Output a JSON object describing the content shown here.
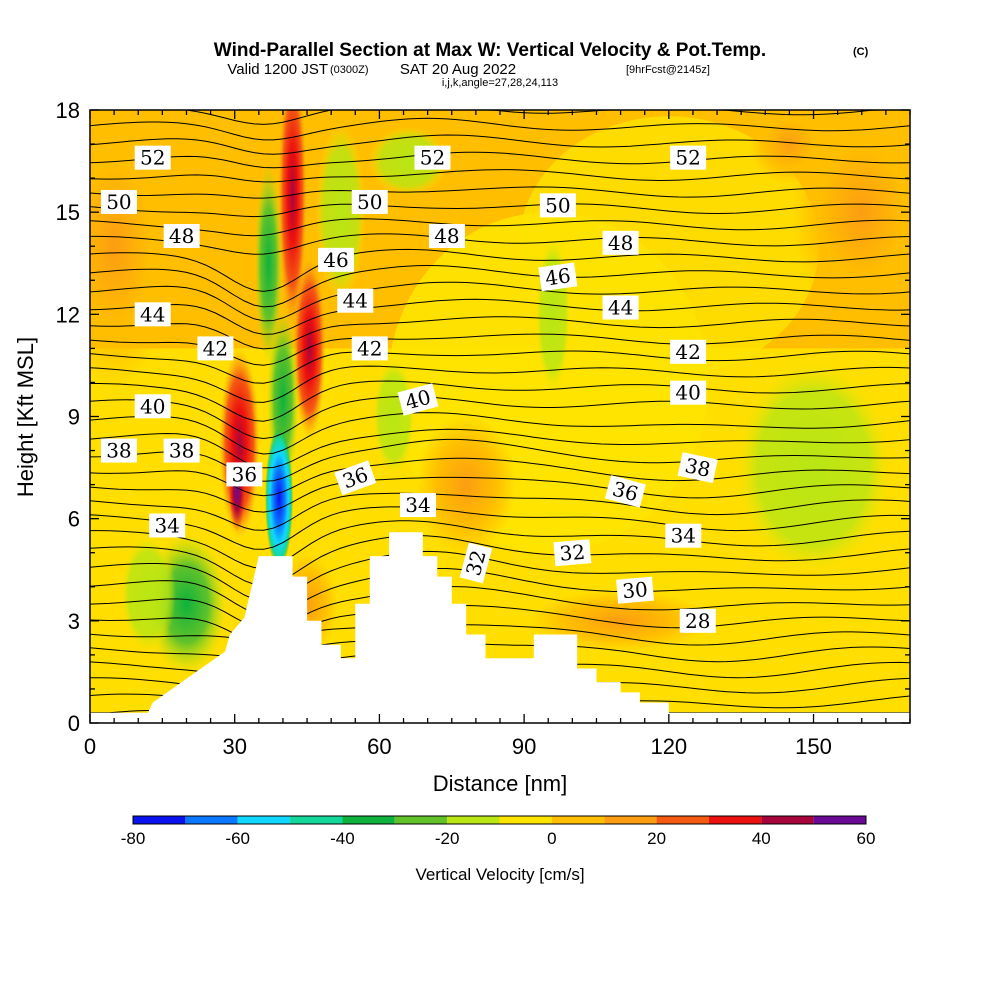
{
  "title": {
    "main": "Wind-Parallel Section at Max W: Vertical Velocity & Pot.Temp.",
    "mark": "(C)",
    "valid_prefix": "Valid 1200 JST",
    "valid_z": "(0300Z)",
    "valid_date": "SAT 20 Aug 2022",
    "forecast": "[9hrFcst@2145z]",
    "indices": "i,j,k,angle=27,28,24,113"
  },
  "chart_data": {
    "type": "heatmap",
    "xlabel": "Distance [nm]",
    "ylabel": "Height [Kft MSL]",
    "xlim": [
      0,
      170
    ],
    "ylim": [
      0,
      18
    ],
    "x_ticks": [
      0,
      30,
      60,
      90,
      120,
      150
    ],
    "y_ticks": [
      0,
      3,
      6,
      9,
      12,
      15,
      18
    ],
    "colorbar": {
      "label": "Vertical Velocity [cm/s]",
      "min": -80,
      "max": 60,
      "step": 10,
      "tick_values": [
        -80,
        -60,
        -40,
        -20,
        0,
        20,
        40,
        60
      ],
      "colors": [
        "#0a12f0",
        "#0a78ff",
        "#10d8ff",
        "#14d89a",
        "#0fb23c",
        "#61c22a",
        "#b9e614",
        "#ffe400",
        "#ffbe00",
        "#fc9d12",
        "#f55a12",
        "#ec1010",
        "#a8053c",
        "#6a0a96"
      ]
    },
    "vertical_velocity_features": [
      {
        "x": 31,
        "y": 8.5,
        "value": 45
      },
      {
        "x": 31,
        "y": 6.8,
        "value": 58
      },
      {
        "x": 39,
        "y": 7.0,
        "value": -85
      },
      {
        "x": 41,
        "y": 9.0,
        "value": -45
      },
      {
        "x": 38,
        "y": 13.5,
        "value": -30
      },
      {
        "x": 44,
        "y": 14.0,
        "value": 35
      },
      {
        "x": 46,
        "y": 11.0,
        "value": 30
      },
      {
        "x": 52,
        "y": 14.5,
        "value": -15
      },
      {
        "x": 67,
        "y": 16.0,
        "value": -10
      },
      {
        "x": 95,
        "y": 12.0,
        "value": -15
      },
      {
        "x": 150,
        "y": 7.5,
        "value": -15
      },
      {
        "x": 22,
        "y": 3.0,
        "value": -30
      },
      {
        "x": 13,
        "y": 3.5,
        "value": -15
      },
      {
        "x": 75,
        "y": 6.0,
        "value": 12
      },
      {
        "x": 145,
        "y": 16.5,
        "value": 12
      }
    ],
    "terrain": [
      {
        "x": 0,
        "h": 0.3
      },
      {
        "x": 12,
        "h": 0.3
      },
      {
        "x": 13,
        "h": 0.6
      },
      {
        "x": 16,
        "h": 0.9
      },
      {
        "x": 19,
        "h": 1.2
      },
      {
        "x": 22,
        "h": 1.5
      },
      {
        "x": 25,
        "h": 1.8
      },
      {
        "x": 28,
        "h": 2.1
      },
      {
        "x": 29,
        "h": 2.6
      },
      {
        "x": 32,
        "h": 3.1
      },
      {
        "x": 35,
        "h": 4.9
      },
      {
        "x": 42,
        "h": 4.9
      },
      {
        "x": 42,
        "h": 4.3
      },
      {
        "x": 45,
        "h": 4.3
      },
      {
        "x": 45,
        "h": 3.0
      },
      {
        "x": 48,
        "h": 3.0
      },
      {
        "x": 48,
        "h": 2.3
      },
      {
        "x": 52,
        "h": 2.3
      },
      {
        "x": 52,
        "h": 1.9
      },
      {
        "x": 55,
        "h": 1.9
      },
      {
        "x": 55,
        "h": 3.5
      },
      {
        "x": 58,
        "h": 3.5
      },
      {
        "x": 58,
        "h": 4.9
      },
      {
        "x": 62,
        "h": 4.9
      },
      {
        "x": 62,
        "h": 5.6
      },
      {
        "x": 69,
        "h": 5.6
      },
      {
        "x": 69,
        "h": 4.9
      },
      {
        "x": 72,
        "h": 4.9
      },
      {
        "x": 72,
        "h": 4.3
      },
      {
        "x": 75,
        "h": 4.3
      },
      {
        "x": 75,
        "h": 3.5
      },
      {
        "x": 78,
        "h": 3.5
      },
      {
        "x": 78,
        "h": 2.6
      },
      {
        "x": 82,
        "h": 2.6
      },
      {
        "x": 82,
        "h": 1.9
      },
      {
        "x": 92,
        "h": 1.9
      },
      {
        "x": 92,
        "h": 2.6
      },
      {
        "x": 101,
        "h": 2.6
      },
      {
        "x": 101,
        "h": 1.6
      },
      {
        "x": 105,
        "h": 1.6
      },
      {
        "x": 105,
        "h": 1.2
      },
      {
        "x": 110,
        "h": 1.2
      },
      {
        "x": 110,
        "h": 0.9
      },
      {
        "x": 114,
        "h": 0.9
      },
      {
        "x": 114,
        "h": 0.6
      },
      {
        "x": 120,
        "h": 0.6
      },
      {
        "x": 120,
        "h": 0.3
      },
      {
        "x": 170,
        "h": 0.3
      }
    ],
    "contour_labels": [
      {
        "text": "52",
        "x": 13,
        "y": 16.6,
        "angle": 0
      },
      {
        "text": "52",
        "x": 71,
        "y": 16.6,
        "angle": 0
      },
      {
        "text": "52",
        "x": 124,
        "y": 16.6,
        "angle": 0
      },
      {
        "text": "50",
        "x": 6,
        "y": 15.3,
        "angle": 0
      },
      {
        "text": "50",
        "x": 58,
        "y": 15.3,
        "angle": 0
      },
      {
        "text": "50",
        "x": 97,
        "y": 15.2,
        "angle": 0
      },
      {
        "text": "48",
        "x": 19,
        "y": 14.3,
        "angle": 0
      },
      {
        "text": "48",
        "x": 74,
        "y": 14.3,
        "angle": 0
      },
      {
        "text": "48",
        "x": 110,
        "y": 14.1,
        "angle": 0
      },
      {
        "text": "46",
        "x": 51,
        "y": 13.6,
        "angle": 0
      },
      {
        "text": "46",
        "x": 97,
        "y": 13.1,
        "angle": -8
      },
      {
        "text": "44",
        "x": 13,
        "y": 12.0,
        "angle": 0
      },
      {
        "text": "44",
        "x": 55,
        "y": 12.4,
        "angle": 0
      },
      {
        "text": "44",
        "x": 110,
        "y": 12.2,
        "angle": 0
      },
      {
        "text": "42",
        "x": 26,
        "y": 11.0,
        "angle": 0
      },
      {
        "text": "42",
        "x": 58,
        "y": 11.0,
        "angle": 0
      },
      {
        "text": "42",
        "x": 124,
        "y": 10.9,
        "angle": 0
      },
      {
        "text": "40",
        "x": 13,
        "y": 9.3,
        "angle": 0
      },
      {
        "text": "40",
        "x": 68,
        "y": 9.5,
        "angle": -15
      },
      {
        "text": "40",
        "x": 124,
        "y": 9.7,
        "angle": 0
      },
      {
        "text": "38",
        "x": 6,
        "y": 8.0,
        "angle": 0
      },
      {
        "text": "38",
        "x": 19,
        "y": 8.0,
        "angle": 0
      },
      {
        "text": "38",
        "x": 126,
        "y": 7.5,
        "angle": 12
      },
      {
        "text": "36",
        "x": 32,
        "y": 7.3,
        "angle": 0
      },
      {
        "text": "36",
        "x": 55,
        "y": 7.2,
        "angle": -20
      },
      {
        "text": "36",
        "x": 111,
        "y": 6.8,
        "angle": 15
      },
      {
        "text": "34",
        "x": 16,
        "y": 5.8,
        "angle": 0
      },
      {
        "text": "34",
        "x": 68,
        "y": 6.4,
        "angle": 0
      },
      {
        "text": "34",
        "x": 123,
        "y": 5.5,
        "angle": 0
      },
      {
        "text": "32",
        "x": 80,
        "y": 4.7,
        "angle": -75
      },
      {
        "text": "32",
        "x": 100,
        "y": 5.0,
        "angle": -5
      },
      {
        "text": "30",
        "x": 113,
        "y": 3.9,
        "angle": -5
      },
      {
        "text": "28",
        "x": 126,
        "y": 3.0,
        "angle": 0
      }
    ]
  }
}
